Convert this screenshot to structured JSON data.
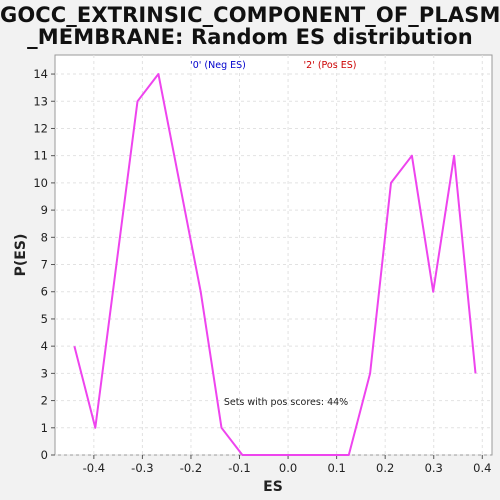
{
  "chart_data": {
    "type": "line",
    "title_line1": "GOCC_EXTRINSIC_COMPONENT_OF_PLASMA",
    "title_line2": "_MEMBRANE: Random ES distribution",
    "xlabel": "ES",
    "ylabel": "P(ES)",
    "xlim": [
      -0.48,
      0.42
    ],
    "ylim": [
      0,
      14.7
    ],
    "xticks": [
      -0.4,
      -0.3,
      -0.2,
      -0.1,
      0.0,
      0.1,
      0.2,
      0.3,
      0.4
    ],
    "xtick_labels": [
      "-0.4",
      "-0.3",
      "-0.2",
      "-0.1",
      "0.0",
      "0.1",
      "0.2",
      "0.3",
      "0.4"
    ],
    "yticks": [
      0,
      1,
      2,
      3,
      4,
      5,
      6,
      7,
      8,
      9,
      10,
      11,
      12,
      13,
      14
    ],
    "grid": true,
    "legend": [
      {
        "label": "'0' (Neg ES)",
        "color": "#0000cc"
      },
      {
        "label": "'2' (Pos ES)",
        "color": "#cc0000"
      }
    ],
    "annotation": "Sets with pos scores: 44%",
    "series": [
      {
        "color": "#ee44ee",
        "x": [
          -0.44,
          -0.397,
          -0.31,
          -0.267,
          -0.18,
          -0.137,
          -0.094,
          0.125,
          0.169,
          0.212,
          0.255,
          0.299,
          0.342,
          0.386
        ],
        "y": [
          4,
          1,
          13,
          14,
          6,
          1,
          0,
          0,
          3,
          10,
          11,
          6,
          11,
          3
        ]
      }
    ]
  }
}
